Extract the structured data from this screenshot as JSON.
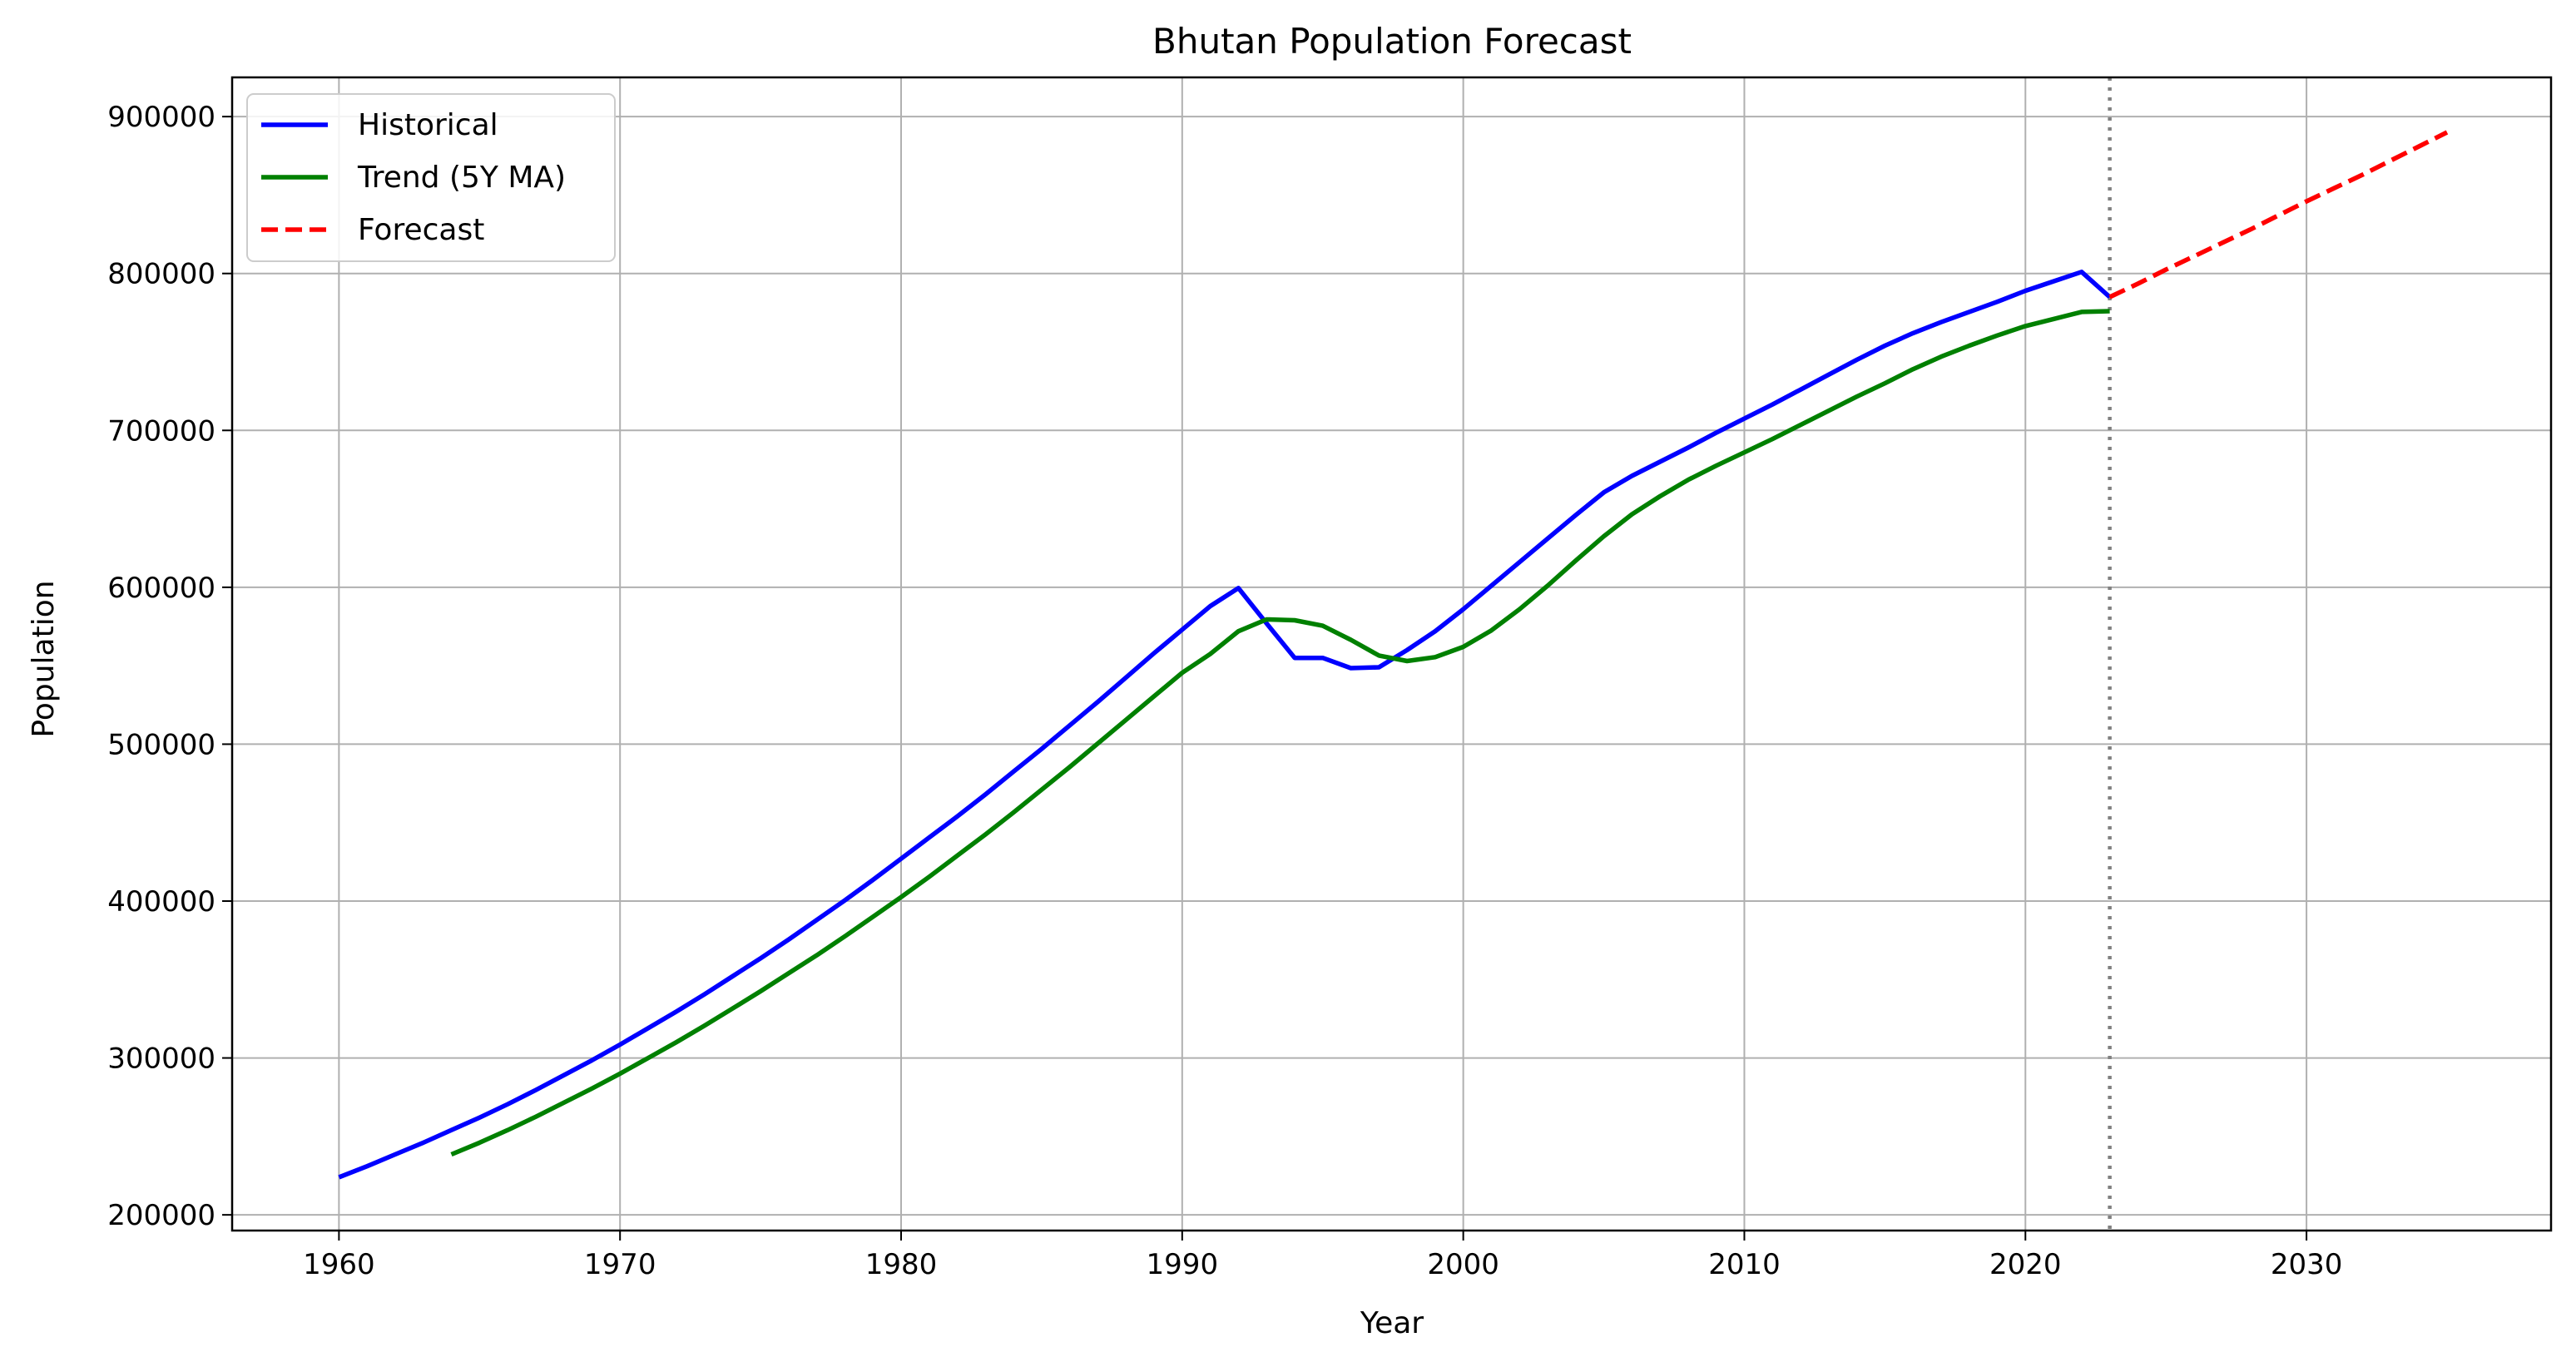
{
  "chart_data": {
    "type": "line",
    "title": "Bhutan Population Forecast",
    "xlabel": "Year",
    "ylabel": "Population",
    "xlim": [
      1956.2,
      2038.7
    ],
    "ylim": [
      190000,
      925000
    ],
    "xticks": [
      1960,
      1970,
      1980,
      1990,
      2000,
      2010,
      2020,
      2030
    ],
    "yticks": [
      200000,
      300000,
      400000,
      500000,
      600000,
      700000,
      800000,
      900000
    ],
    "grid": true,
    "legend_position": "upper-left",
    "forecast_start_marker": 2023,
    "series": [
      {
        "name": "Historical",
        "color": "#0000ff",
        "style": "solid",
        "x": [
          1960,
          1961,
          1962,
          1963,
          1964,
          1965,
          1966,
          1967,
          1968,
          1969,
          1970,
          1971,
          1972,
          1973,
          1974,
          1975,
          1976,
          1977,
          1978,
          1979,
          1980,
          1981,
          1982,
          1983,
          1984,
          1985,
          1986,
          1987,
          1988,
          1989,
          1990,
          1991,
          1992,
          1993,
          1994,
          1995,
          1996,
          1997,
          1998,
          1999,
          2000,
          2001,
          2002,
          2003,
          2004,
          2005,
          2006,
          2007,
          2008,
          2009,
          2010,
          2011,
          2012,
          2013,
          2014,
          2015,
          2016,
          2017,
          2018,
          2019,
          2020,
          2021,
          2022,
          2023
        ],
        "y": [
          224000,
          231000,
          238500,
          246000,
          254000,
          262000,
          270500,
          279500,
          289000,
          298500,
          308500,
          319000,
          329500,
          340500,
          352000,
          363500,
          375500,
          388000,
          400500,
          413500,
          427000,
          440500,
          454000,
          468000,
          482500,
          497000,
          512000,
          527000,
          542500,
          558000,
          573000,
          588000,
          599500,
          577000,
          555000,
          555000,
          548500,
          549000,
          560000,
          572000,
          586000,
          601000,
          616000,
          631000,
          646000,
          660500,
          671000,
          680000,
          689000,
          698500,
          707500,
          716500,
          726000,
          735500,
          745000,
          754000,
          762000,
          769000,
          775500,
          782000,
          789000,
          795000,
          801000,
          785000
        ]
      },
      {
        "name": "Trend (5Y MA)",
        "color": "#008000",
        "style": "solid",
        "x": [
          1964,
          1965,
          1966,
          1967,
          1968,
          1969,
          1970,
          1971,
          1972,
          1973,
          1974,
          1975,
          1976,
          1977,
          1978,
          1979,
          1980,
          1981,
          1982,
          1983,
          1984,
          1985,
          1986,
          1987,
          1988,
          1989,
          1990,
          1991,
          1992,
          1993,
          1994,
          1995,
          1996,
          1997,
          1998,
          1999,
          2000,
          2001,
          2002,
          2003,
          2004,
          2005,
          2006,
          2007,
          2008,
          2009,
          2010,
          2011,
          2012,
          2013,
          2014,
          2015,
          2016,
          2017,
          2018,
          2019,
          2020,
          2021,
          2022,
          2023
        ],
        "y": [
          238500,
          246000,
          254000,
          262500,
          271500,
          280500,
          290000,
          300000,
          310000,
          320500,
          331500,
          342500,
          354000,
          365500,
          377500,
          390000,
          402500,
          415500,
          429000,
          442500,
          456500,
          471000,
          485500,
          500500,
          515500,
          530500,
          545500,
          557500,
          572000,
          579500,
          579000,
          575500,
          566500,
          556500,
          553000,
          555500,
          562000,
          572500,
          586000,
          601000,
          617000,
          632500,
          646500,
          658000,
          668500,
          677500,
          686000,
          694500,
          703500,
          712500,
          721500,
          730000,
          739000,
          747000,
          754000,
          760500,
          766500,
          771000,
          775500,
          776000
        ]
      },
      {
        "name": "Forecast",
        "color": "#ff0000",
        "style": "dashed",
        "x": [
          2023,
          2024,
          2025,
          2026,
          2027,
          2028,
          2029,
          2030,
          2031,
          2032,
          2033,
          2034,
          2035
        ],
        "y": [
          785000,
          793500,
          802500,
          811000,
          819500,
          828000,
          837000,
          846000,
          854500,
          863000,
          872000,
          881000,
          890000
        ]
      }
    ]
  }
}
